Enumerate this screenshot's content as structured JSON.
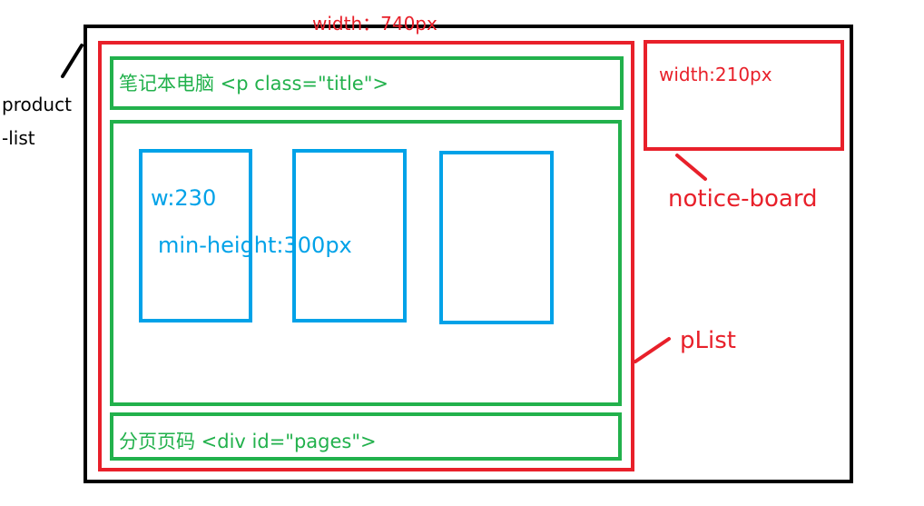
{
  "labels": {
    "product_list_line1": "product",
    "product_list_line2": "-list",
    "plist_width": "width：740px",
    "notice_width": "width:210px",
    "notice_board": "notice-board",
    "plist": "pList",
    "title_box": "笔记本电脑 <p class=\"title\">",
    "pages_box": "分页页码 <div id=\"pages\">",
    "item_width": "w:230",
    "item_min_height": "min-height:300px"
  },
  "colors": {
    "product_list": "#000000",
    "plist": "#e8202a",
    "notice_board": "#e8202a",
    "sections": "#22b14c",
    "items": "#00a2e8"
  }
}
